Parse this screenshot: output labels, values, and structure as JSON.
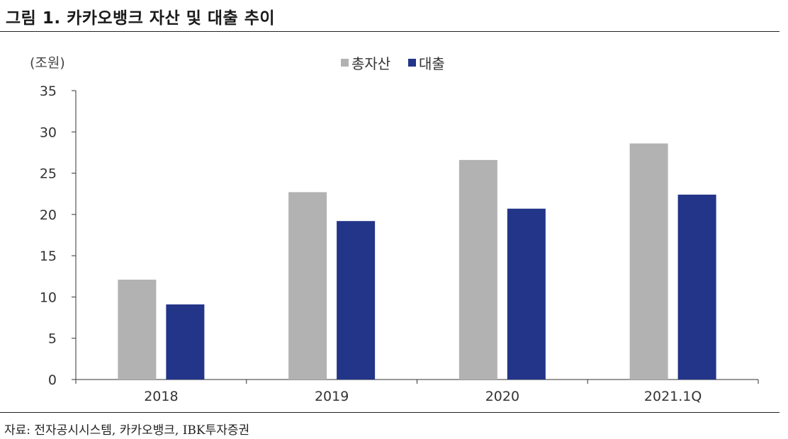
{
  "title": "그림 1. 카카오뱅크 자산 및 대출 추이",
  "unit_label": "(조원)",
  "source": "자료: 전자공시시스템, 카카오뱅크, IBK투자증권",
  "colors": {
    "total_assets": "#b2b2b2",
    "loans": "#233588"
  },
  "chart_data": {
    "type": "bar",
    "title": "그림 1. 카카오뱅크 자산 및 대출 추이",
    "ylabel": "(조원)",
    "xlabel": "",
    "categories": [
      "2018",
      "2019",
      "2020",
      "2021.1Q"
    ],
    "series": [
      {
        "name": "총자산",
        "values": [
          12.1,
          22.7,
          26.6,
          28.6
        ]
      },
      {
        "name": "대출",
        "values": [
          9.1,
          19.2,
          20.7,
          22.4
        ]
      }
    ],
    "ylim": [
      0,
      35
    ],
    "yticks": [
      0,
      5,
      10,
      15,
      20,
      25,
      30,
      35
    ],
    "grid": false,
    "legend": "top-center"
  }
}
